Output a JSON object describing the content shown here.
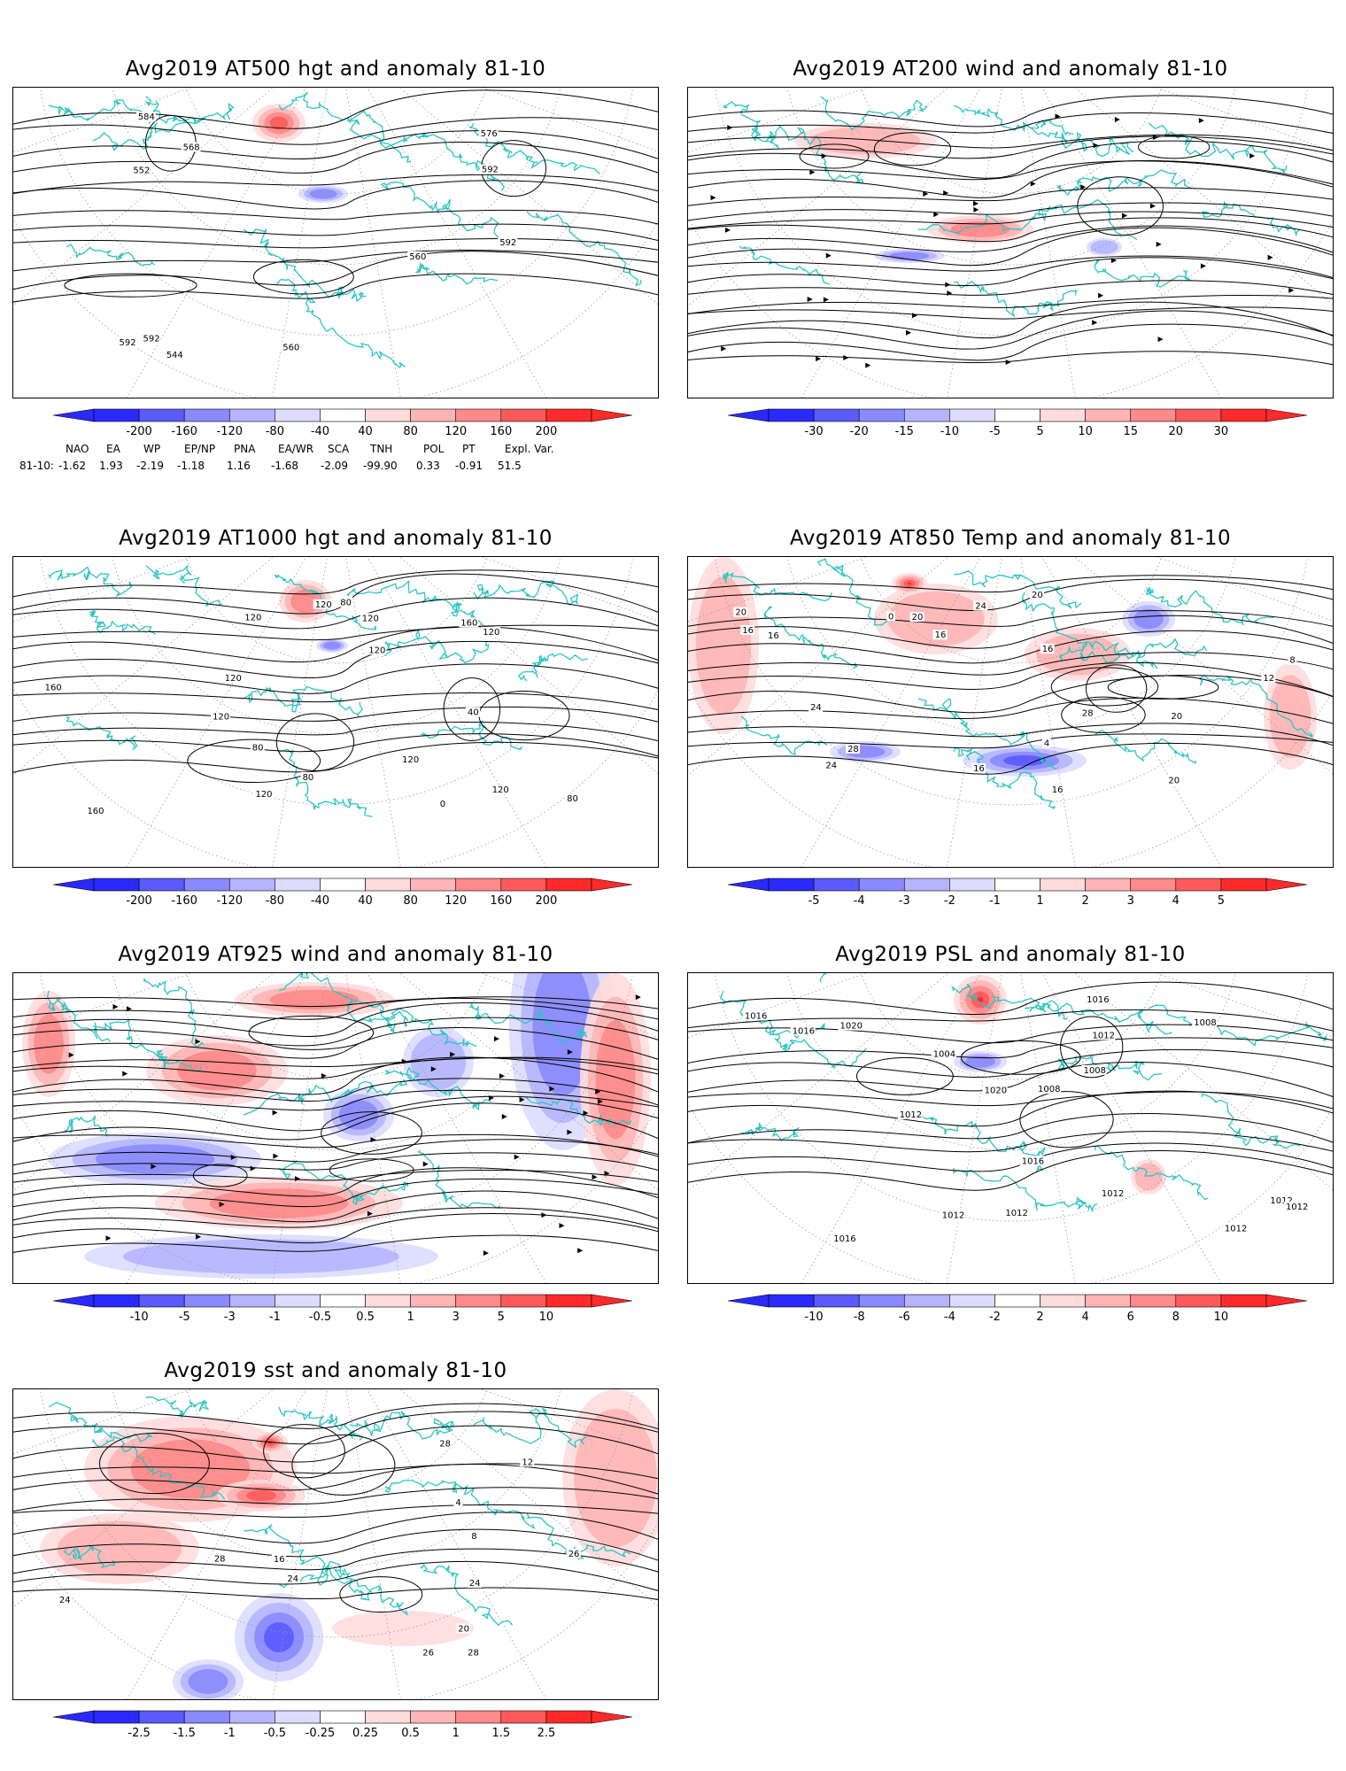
{
  "panels": [
    {
      "id": "p500",
      "title": "Avg2019 AT500 hgt and anomaly 81-10",
      "colorbar": [
        "-200",
        "-160",
        "-120",
        "-80",
        "-40",
        "40",
        "80",
        "120",
        "160",
        "200"
      ],
      "contour_labels": [
        "544",
        "560",
        "552",
        "560",
        "568",
        "576",
        "584",
        "592",
        "592",
        "592",
        "592"
      ]
    },
    {
      "id": "p200",
      "title": "Avg2019 AT200 wind and anomaly 81-10",
      "colorbar": [
        "-30",
        "-20",
        "-15",
        "-10",
        "-5",
        "5",
        "10",
        "15",
        "20",
        "30"
      ],
      "contour_labels": []
    },
    {
      "id": "p1000",
      "title": "Avg2019 AT1000 hgt and anomaly 81-10",
      "colorbar": [
        "-200",
        "-160",
        "-120",
        "-80",
        "-40",
        "40",
        "80",
        "120",
        "160",
        "200"
      ],
      "contour_labels": [
        "120",
        "120",
        "120",
        "80",
        "160",
        "80",
        "80",
        "0",
        "120",
        "120",
        "40",
        "120",
        "160",
        "120",
        "80",
        "120",
        "120",
        "120",
        "160"
      ]
    },
    {
      "id": "p850",
      "title": "Avg2019 AT850 Temp and anomaly 81-10",
      "colorbar": [
        "-5",
        "-4",
        "-3",
        "-2",
        "-1",
        "1",
        "2",
        "3",
        "4",
        "5"
      ],
      "contour_labels": [
        "16",
        "20",
        "24",
        "4",
        "8",
        "0",
        "20",
        "12",
        "16",
        "20",
        "28",
        "28",
        "24",
        "24",
        "20",
        "16",
        "16",
        "16",
        "16",
        "20"
      ]
    },
    {
      "id": "p925",
      "title": "Avg2019 AT925 wind and anomaly 81-10",
      "colorbar": [
        "-10",
        "-5",
        "-3",
        "-1",
        "-0.5",
        "0.5",
        "1",
        "3",
        "5",
        "10"
      ],
      "contour_labels": []
    },
    {
      "id": "psl",
      "title": "Avg2019 PSL and anomaly 81-10",
      "colorbar": [
        "-10",
        "-8",
        "-6",
        "-4",
        "-2",
        "2",
        "4",
        "6",
        "8",
        "10"
      ],
      "contour_labels": [
        "1016",
        "1012",
        "1016",
        "1012",
        "1008",
        "1012",
        "1016",
        "1020",
        "1020",
        "1016",
        "1016",
        "1012",
        "1008",
        "1004",
        "1008",
        "1012",
        "1012",
        "1012",
        "1012"
      ]
    },
    {
      "id": "sst",
      "title": "Avg2019 sst and anomaly 81-10",
      "colorbar": [
        "-2.5",
        "-1.5",
        "-1",
        "-0.5",
        "-0.25",
        "0.25",
        "0.5",
        "1",
        "1.5",
        "2.5"
      ],
      "contour_labels": [
        "26",
        "24",
        "28",
        "4",
        "8",
        "12",
        "16",
        "20",
        "24",
        "28",
        "28",
        "26",
        "24"
      ]
    }
  ],
  "teleconnection": {
    "headers": [
      "NAO",
      "EA",
      "WP",
      "EP/NP",
      "PNA",
      "EA/WR",
      "SCA",
      "TNH",
      "POL",
      "PT",
      "Expl. Var."
    ],
    "row_label": "81-10:",
    "values": [
      "-1.62",
      "1.93",
      "-2.19",
      "-1.18",
      "1.16",
      "-1.68",
      "-2.09",
      "-99.90",
      "0.33",
      "-0.91",
      "51.5"
    ]
  },
  "colors": {
    "map_line": "#2cc4c4",
    "contour": "#000000",
    "grid": "#9a9a9a",
    "blue": [
      "#2a2aff",
      "#5a5aff",
      "#8a8aff",
      "#b5b5ff",
      "#dcdcff"
    ],
    "red": [
      "#ffdcdc",
      "#ffb5b5",
      "#ff8a8a",
      "#ff5a5a",
      "#ff2a2a"
    ]
  }
}
